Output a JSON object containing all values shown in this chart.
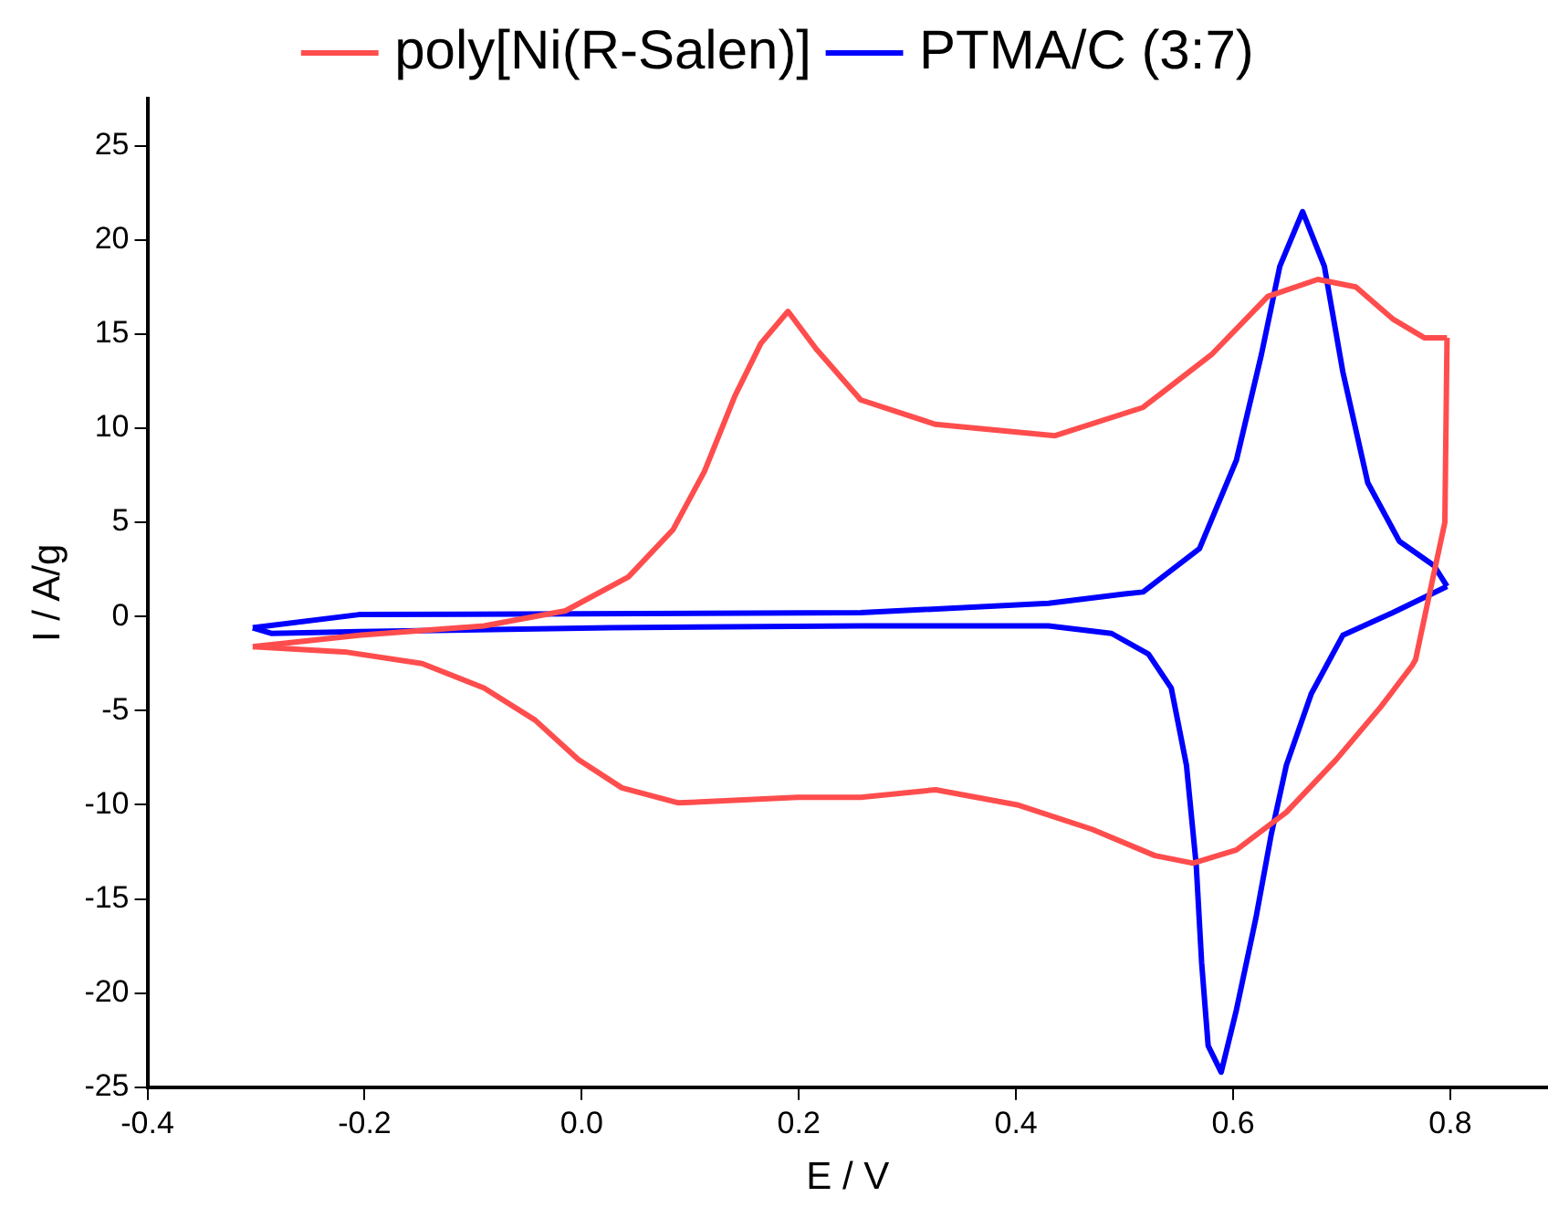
{
  "chart_data": {
    "type": "line",
    "xlabel": "E / V",
    "ylabel": "I / A/g",
    "xlim": [
      -0.4,
      0.89
    ],
    "ylim": [
      -25,
      27.5
    ],
    "xticks": [
      -0.4,
      -0.2,
      {
        "value": 0,
        "label": "0.0"
      },
      0.2,
      0.4,
      0.6,
      0.8
    ],
    "yticks": [
      -25,
      -20,
      -15,
      -10,
      -5,
      0,
      5,
      10,
      15,
      20,
      25
    ],
    "grid": false,
    "legend": "top",
    "series": [
      {
        "name": "poly[Ni(R-Salen)]",
        "color": "#ff4d4d",
        "x": [
          -0.303,
          -0.205,
          -0.09,
          -0.015,
          0.043,
          0.084,
          0.113,
          0.141,
          0.165,
          0.19,
          0.216,
          0.257,
          0.326,
          0.436,
          0.517,
          0.58,
          0.632,
          0.678,
          0.713,
          0.747,
          0.776,
          0.797
        ],
        "values": [
          -1.6,
          -1.0,
          -0.5,
          0.3,
          2.1,
          4.6,
          7.7,
          11.7,
          14.5,
          16.2,
          14.2,
          11.5,
          10.2,
          9.6,
          11.1,
          13.9,
          17.0,
          17.9,
          17.5,
          15.8,
          14.8,
          14.8
        ]
      },
      {
        "color": "#ff4d4d",
        "x": [
          0.797,
          0.795,
          0.782,
          0.768,
          0.765,
          0.736,
          0.695,
          0.649,
          0.603,
          0.563,
          0.528,
          0.47,
          0.401,
          0.326,
          0.257,
          0.199,
          0.089,
          0.037,
          -0.003,
          -0.043,
          -0.09,
          -0.147,
          -0.216,
          -0.303
        ],
        "values": [
          14.8,
          5.0,
          1.5,
          -2.3,
          -2.6,
          -4.8,
          -7.6,
          -10.4,
          -12.4,
          -13.1,
          -12.7,
          -11.3,
          -10.0,
          -9.2,
          -9.6,
          -9.6,
          -9.9,
          -9.1,
          -7.6,
          -5.5,
          -3.8,
          -2.5,
          -1.9,
          -1.6
        ]
      },
      {
        "name": "PTMA/C (3:7)",
        "color": "#0000ff",
        "x": [
          -0.303,
          -0.205,
          0.257,
          0.43,
          0.5,
          0.517,
          0.569,
          0.603,
          0.626,
          0.643,
          0.664,
          0.684,
          0.701,
          0.724,
          0.753,
          0.785,
          0.797
        ],
        "values": [
          -0.6,
          0.1,
          0.2,
          0.7,
          1.2,
          1.3,
          3.6,
          8.3,
          13.9,
          18.6,
          21.5,
          18.6,
          13.0,
          7.1,
          4.0,
          2.7,
          1.6
        ]
      },
      {
        "color": "#0000ff",
        "x": [
          0.797,
          0.747,
          0.701,
          0.672,
          0.649,
          0.635,
          0.621,
          0.603,
          0.589,
          0.577,
          0.571,
          0.566,
          0.557,
          0.543,
          0.522,
          0.488,
          0.43,
          0.257,
          0.026,
          -0.205,
          -0.286,
          -0.303
        ],
        "values": [
          1.6,
          0.2,
          -1.0,
          -4.1,
          -7.9,
          -11.6,
          -16.0,
          -20.9,
          -24.2,
          -22.8,
          -18.4,
          -13.2,
          -7.9,
          -3.8,
          -2.0,
          -0.9,
          -0.5,
          -0.5,
          -0.6,
          -0.8,
          -0.9,
          -0.6
        ]
      }
    ]
  }
}
